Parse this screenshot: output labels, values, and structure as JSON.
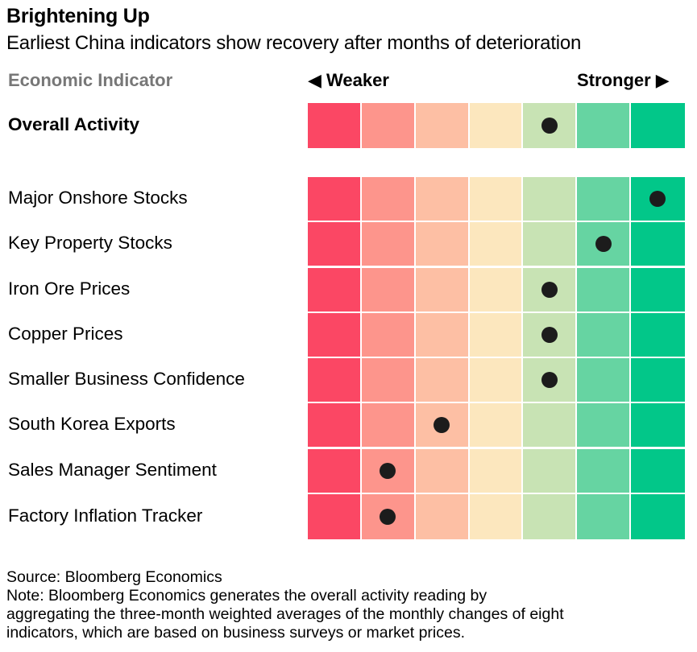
{
  "header": {
    "title": "Brightening Up",
    "subtitle": "Earliest China indicators show recovery after months of deterioration"
  },
  "columns": {
    "indicator": "Economic Indicator",
    "weaker": "◀ Weaker",
    "stronger": "Stronger ▶"
  },
  "colors": {
    "scale": [
      "#fb4764",
      "#fd958c",
      "#fdbfa4",
      "#fce7be",
      "#c8e3b4",
      "#66d4a2",
      "#02c789"
    ],
    "dot": "#1c1c1c"
  },
  "chart_data": {
    "type": "heatmap",
    "title": "Brightening Up",
    "subtitle": "Earliest China indicators show recovery after months of deterioration",
    "scale_min": 1,
    "scale_max": 7,
    "scale_low_label": "Weaker",
    "scale_high_label": "Stronger",
    "overall": {
      "name": "Overall Activity",
      "level": 5
    },
    "indicators": [
      {
        "name": "Major Onshore Stocks",
        "level": 7
      },
      {
        "name": "Key Property Stocks",
        "level": 6
      },
      {
        "name": "Iron Ore Prices",
        "level": 5
      },
      {
        "name": "Copper Prices",
        "level": 5
      },
      {
        "name": "Smaller Business Confidence",
        "level": 5
      },
      {
        "name": "South Korea Exports",
        "level": 3
      },
      {
        "name": "Sales Manager Sentiment",
        "level": 2
      },
      {
        "name": "Factory Inflation Tracker",
        "level": 2
      }
    ]
  },
  "footer": {
    "source": "Source: Bloomberg Economics",
    "note_lines": [
      "Note: Bloomberg Economics generates the overall activity reading by",
      "aggregating the three-month weighted averages of the monthly changes of eight",
      "indicators, which are based on business surveys or market prices."
    ]
  }
}
